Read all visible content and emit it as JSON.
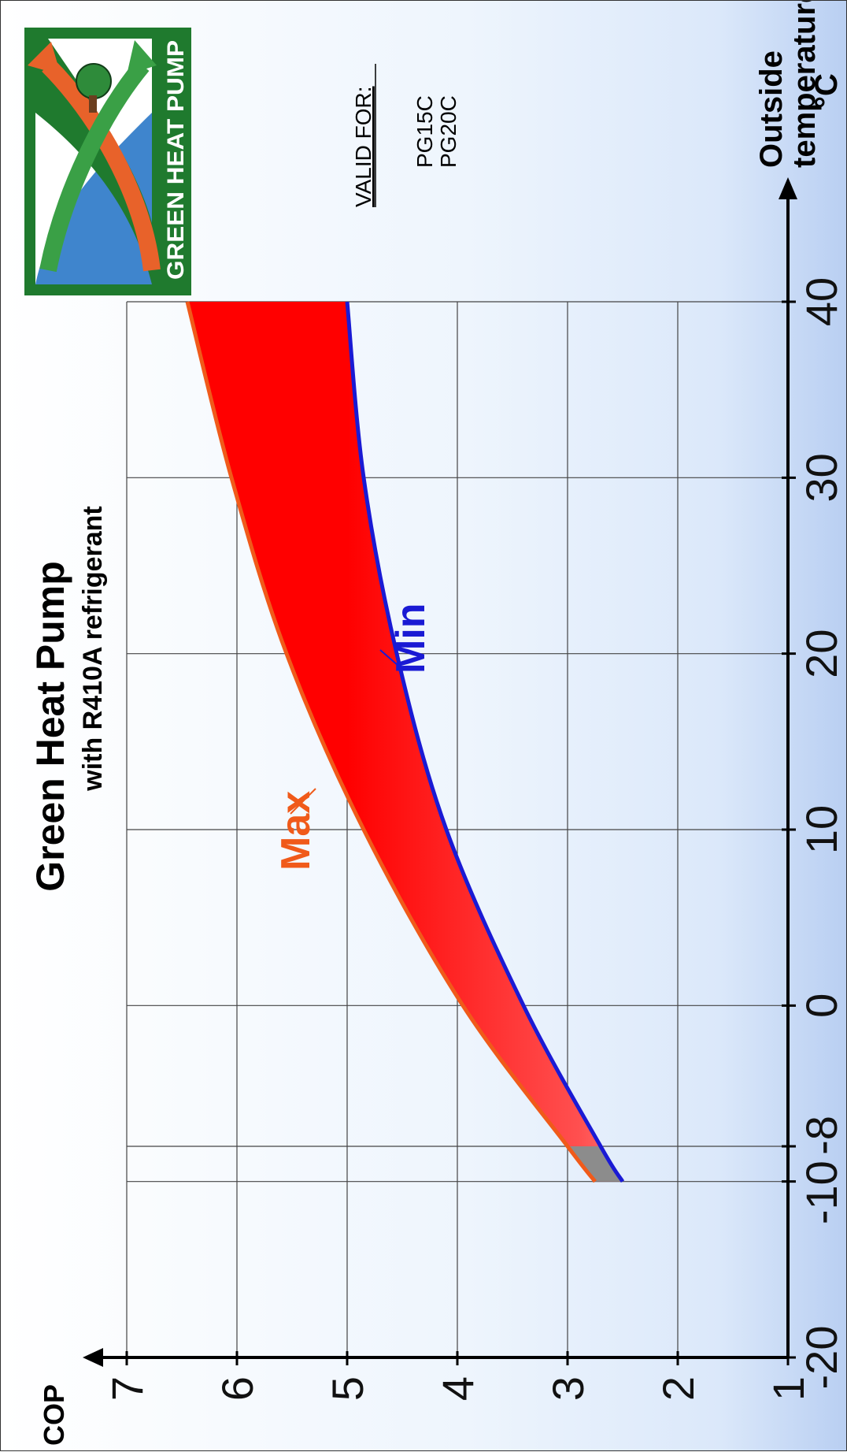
{
  "chart_data": {
    "type": "area",
    "title": "Green Heat Pump",
    "subtitle": "with R410A refrigerant",
    "xlabel_line1": "Outside",
    "xlabel_line2": "temperature",
    "xlabel_unit": "°C",
    "ylabel": "COP",
    "x_ticks": [
      -20,
      -10,
      -8,
      0,
      10,
      20,
      30,
      40
    ],
    "x_tick_labels": [
      "-20",
      "-10",
      "-8",
      "0",
      "10",
      "20",
      "30",
      "40"
    ],
    "y_ticks": [
      1,
      2,
      3,
      4,
      5,
      6,
      7
    ],
    "y_tick_labels": [
      "1",
      "2",
      "3",
      "4",
      "5",
      "6",
      "7"
    ],
    "xlim": [
      -20,
      40
    ],
    "ylim": [
      1,
      7
    ],
    "grid": true,
    "series": [
      {
        "name": "Max",
        "color": "#f05a1a",
        "x": [
          -10,
          -8,
          0,
          10,
          20,
          30,
          40
        ],
        "values": [
          2.75,
          3.0,
          3.95,
          4.85,
          5.55,
          6.05,
          6.45
        ]
      },
      {
        "name": "Min",
        "color": "#1a1ad4",
        "x": [
          -10,
          -8,
          0,
          10,
          20,
          30,
          40
        ],
        "values": [
          2.5,
          2.7,
          3.4,
          4.1,
          4.55,
          4.85,
          5.0
        ]
      }
    ]
  },
  "valid_for": {
    "label": "VALID FOR:",
    "models": [
      "PG15C",
      "PG20C"
    ]
  },
  "logo": {
    "text": "GREEN HEAT PUMP"
  },
  "colors": {
    "max_line": "#f05a1a",
    "min_line": "#1a1ad4",
    "fill_hot": "#ff0000",
    "fill_mid": "#ffffff",
    "fill_cold": "#4a86f0",
    "logo_green": "#1f7a2e"
  }
}
